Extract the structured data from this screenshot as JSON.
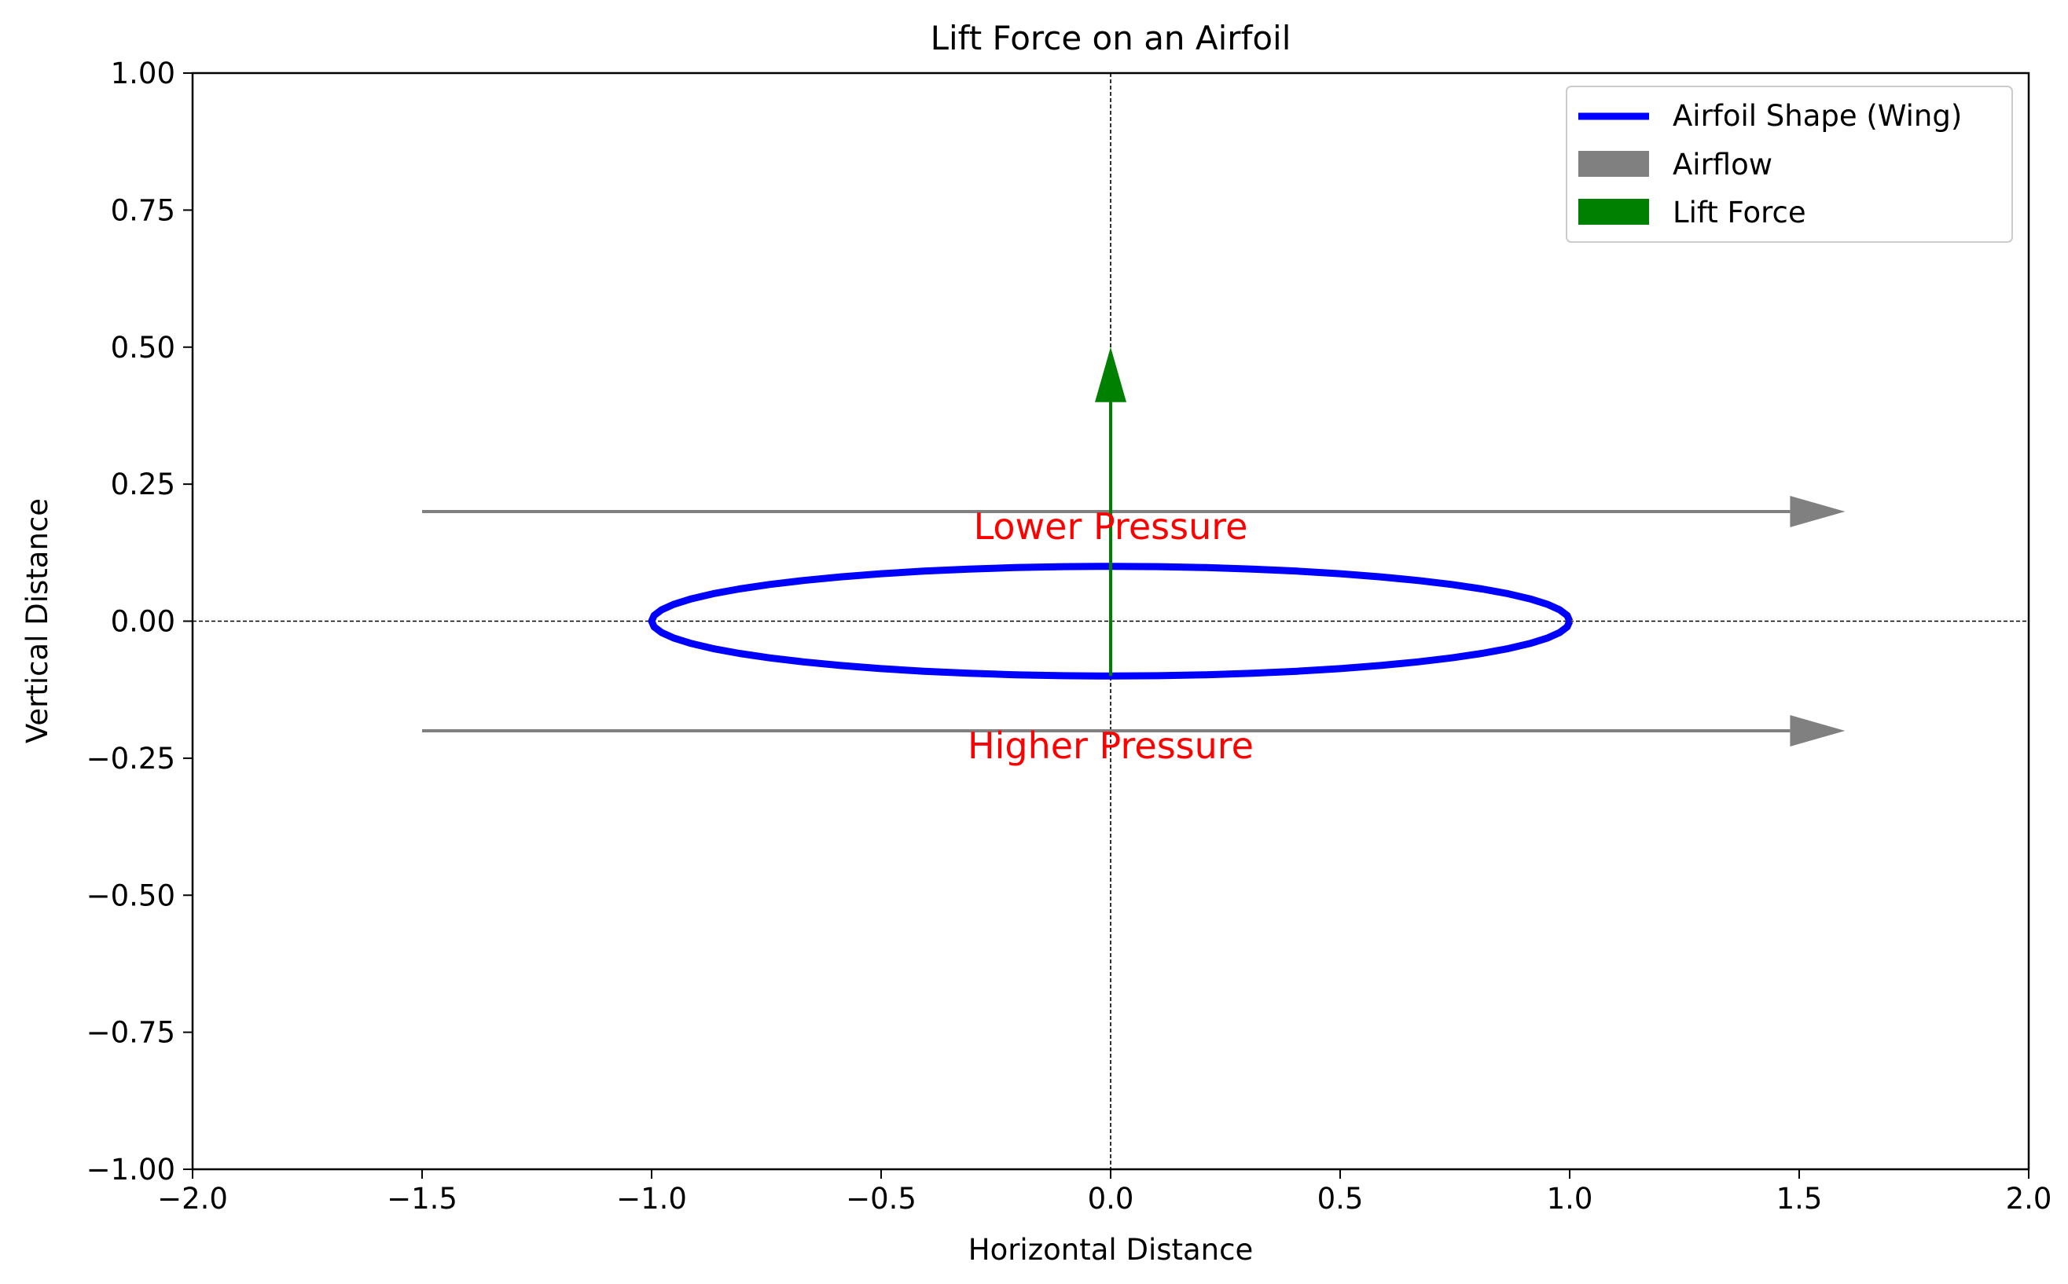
{
  "chart_data": {
    "type": "line",
    "title": "Lift Force on an Airfoil",
    "xlabel": "Horizontal Distance",
    "ylabel": "Vertical Distance",
    "xlim": [
      -2.0,
      2.0
    ],
    "ylim": [
      -1.0,
      1.0
    ],
    "x_ticks": [
      "−2.0",
      "−1.5",
      "−1.0",
      "−0.5",
      "0.0",
      "0.5",
      "1.0",
      "1.5",
      "2.0"
    ],
    "x_tick_values": [
      -2.0,
      -1.5,
      -1.0,
      -0.5,
      0.0,
      0.5,
      1.0,
      1.5,
      2.0
    ],
    "y_ticks": [
      "1.00",
      "0.75",
      "0.50",
      "0.25",
      "0.00",
      "−0.25",
      "−0.50",
      "−0.75",
      "−1.00"
    ],
    "y_tick_values": [
      1.0,
      0.75,
      0.5,
      0.25,
      0.0,
      -0.25,
      -0.5,
      -0.75,
      -1.0
    ],
    "grid": false,
    "reference_lines": {
      "x": 0,
      "y": 0,
      "style": "dashed",
      "color": "#000000"
    },
    "series": [
      {
        "name": "Airfoil Shape (Wing)",
        "kind": "ellipse",
        "center": [
          0,
          0
        ],
        "semi_axis_x": 1.0,
        "semi_axis_y": 0.1,
        "color": "#0000ff"
      }
    ],
    "arrows": [
      {
        "name": "Airflow",
        "from": [
          -1.5,
          0.2
        ],
        "to": [
          1.6,
          0.2
        ],
        "color": "#808080"
      },
      {
        "name": "Airflow",
        "from": [
          -1.5,
          -0.2
        ],
        "to": [
          1.6,
          -0.2
        ],
        "color": "#808080"
      },
      {
        "name": "Lift Force",
        "from": [
          0,
          -0.1
        ],
        "to": [
          0,
          0.5
        ],
        "color": "#008000"
      }
    ],
    "annotations": [
      {
        "text": "Lower Pressure",
        "x": 0,
        "y": 0.17,
        "color": "#ff0000"
      },
      {
        "text": "Higher Pressure",
        "x": 0,
        "y": -0.23,
        "color": "#ff0000"
      }
    ],
    "legend": {
      "placement": "top-right",
      "entries": [
        {
          "label": "Airfoil Shape (Wing)",
          "marker": "line",
          "color": "#0000ff"
        },
        {
          "label": "Airflow",
          "marker": "patch",
          "color": "#808080"
        },
        {
          "label": "Lift Force",
          "marker": "patch",
          "color": "#008000"
        }
      ]
    }
  }
}
